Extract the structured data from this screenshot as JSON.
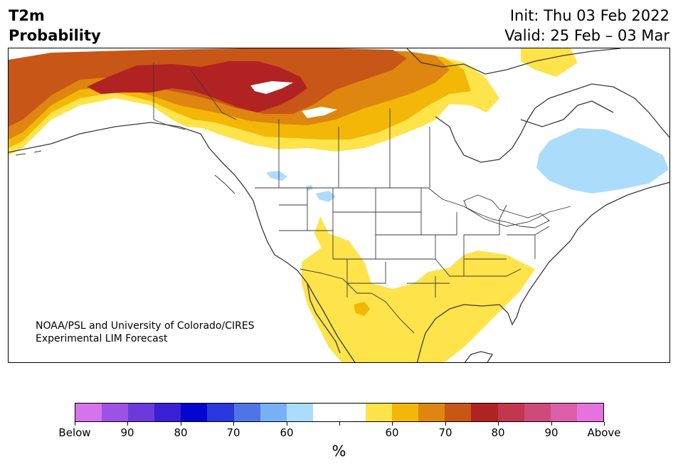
{
  "header": {
    "variable": "T2m",
    "kind": "Probability",
    "init": "Init: Thu 03 Feb 2022",
    "valid": "Valid: 25 Feb – 03 Mar"
  },
  "map": {
    "region": "North America",
    "credit_line1": "NOAA/PSL and University of Colorado/CIRES",
    "credit_line2": "Experimental LIM Forecast",
    "colors": {
      "below_60": "#acdcfc",
      "above_60": "#fee34a",
      "above_65": "#f2b707",
      "above_70": "#de860f",
      "above_75": "#c85617",
      "above_80": "#b12222",
      "land_outline": "#3a3a3a",
      "water": "#ffffff"
    }
  },
  "colorbar": {
    "unit": "%",
    "colors": [
      "#d473ea",
      "#9d52e6",
      "#6c3adb",
      "#391fd6",
      "#0505d2",
      "#2738dc",
      "#4f74e8",
      "#77b0f3",
      "#acdcfc",
      "#ffffff",
      "#ffffff",
      "#fee34a",
      "#f2b707",
      "#de860f",
      "#c85617",
      "#b12222",
      "#c2364e",
      "#cd4a7a",
      "#db5fa9",
      "#e572dd"
    ],
    "labels": [
      "Below",
      "90",
      "80",
      "70",
      "60",
      "",
      "60",
      "70",
      "80",
      "90",
      "Above"
    ]
  }
}
